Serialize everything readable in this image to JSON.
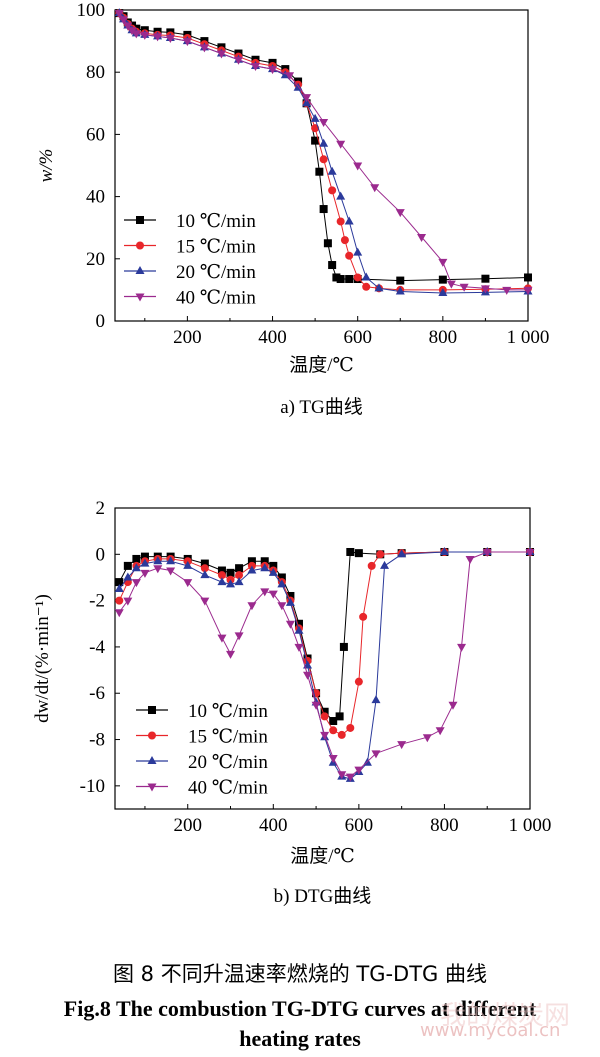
{
  "figure": {
    "caption_cn": "图 8  不同升温速率燃烧的 TG-DTG 曲线",
    "caption_en_line1": "Fig.8 The combustion TG-DTG curves at different",
    "caption_en_line2": "heating rates",
    "watermark_text": "www.mycoal.cn",
    "watermark_brand": "我的煤炭网"
  },
  "chart_data": [
    {
      "type": "scatter",
      "panel_label": "a) TG曲线",
      "xlabel": "温度/℃",
      "ylabel": "w/%",
      "xlim": [
        30,
        1000
      ],
      "ylim": [
        0,
        100
      ],
      "xticks": [
        200,
        400,
        600,
        800,
        1000
      ],
      "xtick_labels": [
        "200",
        "400",
        "600",
        "800",
        "1 000"
      ],
      "yticks": [
        0,
        20,
        40,
        60,
        80,
        100
      ],
      "ytick_labels": [
        "0",
        "20",
        "40",
        "60",
        "80",
        "100"
      ],
      "legend_position": "bottom-left",
      "grid": false,
      "series": [
        {
          "name": "10 ℃/min",
          "color": "#000000",
          "marker": "square",
          "x": [
            40,
            50,
            60,
            70,
            80,
            100,
            130,
            160,
            200,
            240,
            280,
            320,
            360,
            400,
            430,
            460,
            480,
            500,
            510,
            520,
            530,
            540,
            550,
            560,
            580,
            600,
            700,
            800,
            900,
            1000
          ],
          "y": [
            99,
            98,
            96,
            95,
            94,
            93.5,
            93,
            92.8,
            92,
            90,
            88,
            86,
            84,
            83,
            81,
            77,
            70,
            58,
            48,
            36,
            25,
            18,
            14,
            13.5,
            13.5,
            13.5,
            13,
            13.3,
            13.6,
            14
          ]
        },
        {
          "name": "15 ℃/min",
          "color": "#e8262a",
          "marker": "circle",
          "x": [
            40,
            50,
            60,
            70,
            80,
            100,
            130,
            160,
            200,
            240,
            280,
            320,
            360,
            400,
            430,
            460,
            480,
            500,
            520,
            540,
            560,
            570,
            580,
            600,
            620,
            650,
            700,
            800,
            900,
            1000
          ],
          "y": [
            99,
            97.5,
            95.5,
            94,
            93,
            92.5,
            92,
            91.8,
            91,
            89,
            87,
            85,
            83,
            82,
            80,
            76,
            70,
            62,
            52,
            42,
            32,
            26,
            21,
            14,
            11,
            10.5,
            10,
            10,
            10.2,
            10.5
          ]
        },
        {
          "name": "20 ℃/min",
          "color": "#2b3a9b",
          "marker": "triangle-up",
          "x": [
            40,
            50,
            60,
            70,
            80,
            100,
            130,
            160,
            200,
            240,
            280,
            320,
            360,
            400,
            430,
            460,
            480,
            500,
            520,
            540,
            560,
            580,
            600,
            620,
            650,
            700,
            800,
            900,
            1000
          ],
          "y": [
            99,
            97,
            95,
            93.5,
            92.5,
            92,
            91.5,
            91,
            90,
            88,
            86,
            84,
            82,
            81,
            79,
            75,
            70,
            65,
            57,
            48,
            40,
            32,
            22,
            14,
            10.5,
            9.5,
            9,
            9.2,
            9.5
          ]
        },
        {
          "name": "40 ℃/min",
          "color": "#9b2a8e",
          "marker": "triangle-down",
          "x": [
            40,
            50,
            60,
            70,
            80,
            100,
            130,
            160,
            200,
            240,
            280,
            320,
            360,
            400,
            440,
            480,
            520,
            560,
            600,
            640,
            700,
            750,
            800,
            820,
            850,
            900,
            950,
            1000
          ],
          "y": [
            99,
            97,
            95,
            93.5,
            92.5,
            92,
            91.5,
            91,
            90,
            88,
            86,
            84,
            82,
            81,
            79,
            72,
            64,
            57,
            50,
            43,
            35,
            27,
            19,
            12,
            11,
            10.5,
            10,
            10
          ]
        }
      ]
    },
    {
      "type": "scatter",
      "panel_label": "b) DTG曲线",
      "xlabel": "温度/℃",
      "ylabel": "dw/dt/(%·min⁻¹)",
      "xlim": [
        30,
        1000
      ],
      "ylim": [
        -11,
        2
      ],
      "xticks": [
        200,
        400,
        600,
        800,
        1000
      ],
      "xtick_labels": [
        "200",
        "400",
        "600",
        "800",
        "1 000"
      ],
      "yticks": [
        -10,
        -8,
        -6,
        -4,
        -2,
        0,
        2
      ],
      "ytick_labels": [
        "-10",
        "-8",
        "-6",
        "-4",
        "-2",
        "0",
        "2"
      ],
      "legend_position": "bottom-left",
      "grid": false,
      "series": [
        {
          "name": "10 ℃/min",
          "color": "#000000",
          "marker": "square",
          "x": [
            40,
            60,
            80,
            100,
            130,
            160,
            200,
            240,
            280,
            300,
            320,
            350,
            380,
            400,
            420,
            440,
            460,
            480,
            500,
            520,
            540,
            555,
            565,
            580,
            600,
            650,
            700,
            800,
            900,
            1000
          ],
          "y": [
            -1.2,
            -0.5,
            -0.2,
            -0.1,
            -0.1,
            -0.1,
            -0.2,
            -0.4,
            -0.7,
            -0.8,
            -0.6,
            -0.3,
            -0.3,
            -0.5,
            -1,
            -1.8,
            -3,
            -4.5,
            -6,
            -6.8,
            -7.2,
            -7,
            -4,
            0.1,
            0.05,
            0,
            0.05,
            0.1,
            0.1,
            0.1
          ]
        },
        {
          "name": "15 ℃/min",
          "color": "#e8262a",
          "marker": "circle",
          "x": [
            40,
            60,
            80,
            100,
            130,
            160,
            200,
            240,
            280,
            300,
            320,
            350,
            380,
            400,
            420,
            440,
            460,
            480,
            500,
            520,
            540,
            560,
            580,
            600,
            610,
            630,
            650,
            700,
            800,
            900,
            1000
          ],
          "y": [
            -2,
            -1.2,
            -0.5,
            -0.3,
            -0.2,
            -0.2,
            -0.3,
            -0.6,
            -0.9,
            -1.1,
            -0.9,
            -0.5,
            -0.5,
            -0.7,
            -1.2,
            -2,
            -3.2,
            -4.6,
            -6,
            -7,
            -7.6,
            -7.8,
            -7.5,
            -5.5,
            -2.7,
            -0.5,
            0,
            0.05,
            0.1,
            0.1,
            0.1
          ]
        },
        {
          "name": "20 ℃/min",
          "color": "#2b3a9b",
          "marker": "triangle-up",
          "x": [
            40,
            60,
            80,
            100,
            130,
            160,
            200,
            240,
            280,
            300,
            320,
            350,
            380,
            400,
            420,
            440,
            460,
            480,
            500,
            520,
            540,
            560,
            580,
            600,
            620,
            640,
            660,
            700,
            800,
            900,
            1000
          ],
          "y": [
            -1.5,
            -1,
            -0.6,
            -0.4,
            -0.3,
            -0.3,
            -0.5,
            -0.9,
            -1.2,
            -1.3,
            -1.2,
            -0.7,
            -0.6,
            -0.8,
            -1.3,
            -2.1,
            -3.3,
            -4.8,
            -6.4,
            -7.9,
            -9,
            -9.6,
            -9.7,
            -9.4,
            -9,
            -6.3,
            -0.5,
            0,
            0.1,
            0.1,
            0.1
          ]
        },
        {
          "name": "40 ℃/min",
          "color": "#9b2a8e",
          "marker": "triangle-down",
          "x": [
            40,
            60,
            80,
            100,
            130,
            160,
            200,
            240,
            280,
            300,
            320,
            350,
            380,
            400,
            420,
            440,
            460,
            480,
            500,
            520,
            540,
            560,
            580,
            600,
            640,
            700,
            760,
            790,
            820,
            840,
            860,
            900,
            1000
          ],
          "y": [
            -2.5,
            -2,
            -1.2,
            -0.8,
            -0.6,
            -0.7,
            -1.2,
            -2,
            -3.6,
            -4.3,
            -3.5,
            -2.2,
            -1.6,
            -1.7,
            -2.2,
            -3,
            -4,
            -5.2,
            -6.5,
            -7.8,
            -8.8,
            -9.5,
            -9.6,
            -9.3,
            -8.6,
            -8.2,
            -7.9,
            -7.6,
            -6.5,
            -4,
            -0.2,
            0.1,
            0.1
          ]
        }
      ]
    }
  ]
}
